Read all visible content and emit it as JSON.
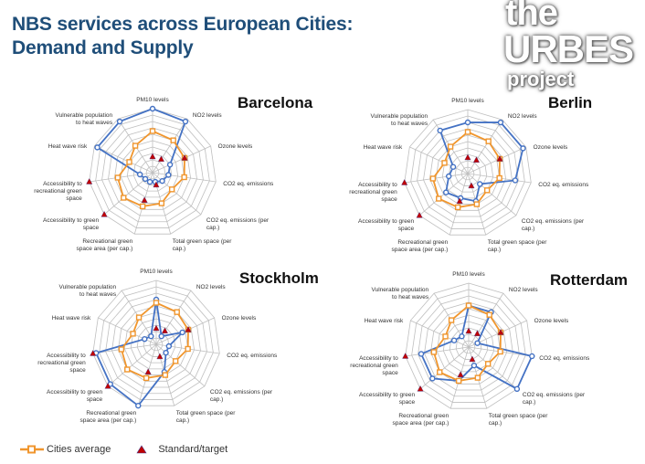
{
  "header": {
    "title_line1": "NBS services across European Cities:",
    "title_line2": "Demand and Supply",
    "logo": {
      "line1": "the",
      "line2": "URBES",
      "line3": "project"
    }
  },
  "legend": {
    "average_label": "Cities average",
    "target_label": "Standard/target"
  },
  "colors": {
    "city": "#4472c4",
    "average": "#f0962e",
    "target": "#c00000",
    "grid": "#bfbfbf"
  },
  "chart_data": [
    {
      "type": "radar",
      "title": "Barcelona",
      "rings": 10,
      "range": [
        0,
        1
      ],
      "axes": [
        "PM10 levels",
        "NO2 levels",
        "Ozone levels",
        "CO2 eq. emissions",
        "CO2 eq. emissions (per cap.)",
        "Total green space (per cap.)",
        "Recreational green space area (per cap.)",
        "Accessibility to green space",
        "Accessibility to recreational green space",
        "Heat wave risk",
        "Vulnerable population to heat waves"
      ],
      "series": [
        {
          "name": "Barcelona",
          "values": [
            1.0,
            0.95,
            0.3,
            0.25,
            0.2,
            0.15,
            0.15,
            0.15,
            0.2,
            0.95,
            0.95
          ]
        },
        {
          "name": "Cities average",
          "values": [
            0.65,
            0.6,
            0.55,
            0.5,
            0.4,
            0.5,
            0.55,
            0.6,
            0.55,
            0.4,
            0.5
          ]
        },
        {
          "name": "Standard/target",
          "values": [
            0.25,
            0.25,
            0.55,
            null,
            null,
            0.2,
            0.45,
            1.0,
            1.0,
            null,
            null
          ]
        }
      ]
    },
    {
      "type": "radar",
      "title": "Berlin",
      "rings": 10,
      "range": [
        0,
        1
      ],
      "axes": [
        "PM10 levels",
        "NO2 levels",
        "Ozone levels",
        "CO2 eq. emissions",
        "CO2 eq. emissions (per cap.)",
        "Total green space (per cap.)",
        "Recreational green space area (per cap.)",
        "Accessibility to green space",
        "Accessibility to recreational green space",
        "Heat wave risk",
        "Vulnerable population to heat waves"
      ],
      "series": [
        {
          "name": "Berlin",
          "values": [
            0.8,
            0.95,
            0.95,
            0.75,
            0.25,
            0.45,
            0.4,
            0.45,
            0.3,
            0.25,
            0.8
          ]
        },
        {
          "name": "Cities average",
          "values": [
            0.65,
            0.6,
            0.55,
            0.5,
            0.4,
            0.5,
            0.55,
            0.6,
            0.55,
            0.4,
            0.5
          ]
        },
        {
          "name": "Standard/target",
          "values": [
            0.25,
            0.25,
            0.55,
            null,
            null,
            0.2,
            0.45,
            1.0,
            1.0,
            null,
            null
          ]
        }
      ]
    },
    {
      "type": "radar",
      "title": "Stockholm",
      "rings": 10,
      "range": [
        0,
        1
      ],
      "axes": [
        "PM10 levels",
        "NO2 levels",
        "Ozone levels",
        "CO2 eq. emissions",
        "CO2 eq. emissions (per cap.)",
        "Total green space (per cap.)",
        "Recreational green space area (per cap.)",
        "Accessibility to green space",
        "Accessibility to recreational green space",
        "Heat wave risk",
        "Vulnerable population to heat waves"
      ],
      "series": [
        {
          "name": "Stockholm",
          "values": [
            0.7,
            0.15,
            0.45,
            0.2,
            0.2,
            0.45,
            1.0,
            0.95,
            0.95,
            0.2,
            0.15
          ]
        },
        {
          "name": "Cities average",
          "values": [
            0.65,
            0.6,
            0.55,
            0.5,
            0.4,
            0.5,
            0.55,
            0.6,
            0.55,
            0.4,
            0.5
          ]
        },
        {
          "name": "Standard/target",
          "values": [
            0.25,
            0.25,
            0.55,
            null,
            null,
            0.2,
            0.45,
            1.0,
            1.0,
            null,
            null
          ]
        }
      ]
    },
    {
      "type": "radar",
      "title": "Rotterdam",
      "rings": 10,
      "range": [
        0,
        1
      ],
      "axes": [
        "PM10 levels",
        "NO2 levels",
        "Ozone levels",
        "CO2 eq. emissions",
        "CO2 eq. emissions (per cap.)",
        "Total green space (per cap.)",
        "Recreational green space area (per cap.)",
        "Accessibility to green space",
        "Accessibility to recreational green space",
        "Heat wave risk",
        "Vulnerable population to heat waves"
      ],
      "series": [
        {
          "name": "Rotterdam",
          "values": [
            0.65,
            0.65,
            0.15,
            1.0,
            1.0,
            0.3,
            0.55,
            0.75,
            0.75,
            0.25,
            0.2
          ]
        },
        {
          "name": "Cities average",
          "values": [
            0.65,
            0.6,
            0.55,
            0.5,
            0.4,
            0.5,
            0.55,
            0.6,
            0.55,
            0.4,
            0.5
          ]
        },
        {
          "name": "Standard/target",
          "values": [
            0.25,
            0.25,
            0.55,
            null,
            null,
            0.2,
            0.45,
            1.0,
            1.0,
            null,
            null
          ]
        }
      ]
    }
  ]
}
